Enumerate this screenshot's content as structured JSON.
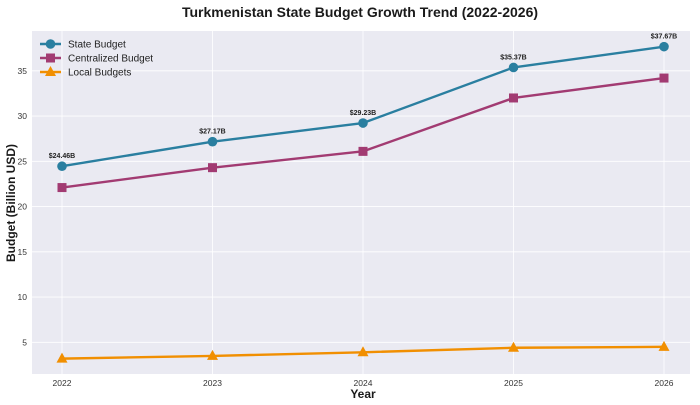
{
  "chart_data": {
    "type": "line",
    "title": "Turkmenistan State Budget Growth Trend (2022-2026)",
    "xlabel": "Year",
    "ylabel": "Budget (Billion USD)",
    "x": [
      "2022",
      "2023",
      "2024",
      "2025",
      "2026"
    ],
    "yticks": [
      "5",
      "10",
      "15",
      "20",
      "25",
      "30",
      "35"
    ],
    "ylim": [
      1.5,
      39.4
    ],
    "grid": true,
    "legend_position": "top-left",
    "series": [
      {
        "name": "State Budget",
        "color": "#2a7fa0",
        "marker": "circle",
        "values": [
          24.46,
          27.17,
          29.23,
          35.37,
          37.67
        ],
        "labels": [
          "$24.46B",
          "$27.17B",
          "$29.23B",
          "$35.37B",
          "$37.67B"
        ]
      },
      {
        "name": "Centralized Budget",
        "color": "#a23b72",
        "marker": "square",
        "values": [
          22.1,
          24.3,
          26.1,
          32.0,
          34.2
        ]
      },
      {
        "name": "Local Budgets",
        "color": "#f18f01",
        "marker": "triangle",
        "values": [
          3.2,
          3.5,
          3.9,
          4.4,
          4.5
        ]
      }
    ]
  }
}
